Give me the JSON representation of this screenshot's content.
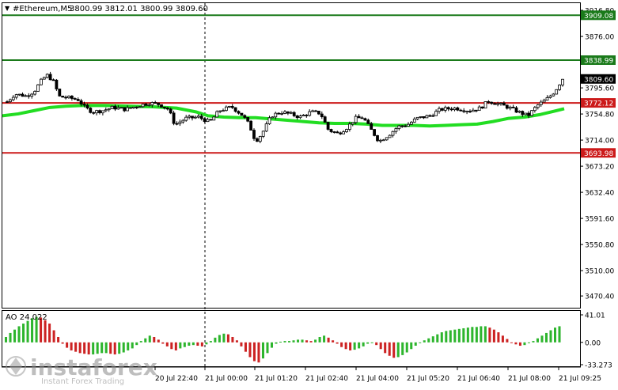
{
  "header": {
    "symbol": "#Ethereum,M5",
    "ohlc": "3800.99 3812.01 3800.99 3809.60"
  },
  "oscillator": {
    "label": "AO 24.022",
    "axis_ticks": [
      "41.01",
      "0.00",
      "-33.273"
    ]
  },
  "watermark": {
    "brand": "instaforex",
    "tagline": "Instant Forex Trading"
  },
  "colors": {
    "candle": "#000000",
    "ma": "#22dd22",
    "resistance": "#1a7a1a",
    "support": "#cc1a1a",
    "ao_up": "#2db52d",
    "ao_down": "#cc2222",
    "price_tag": "#000000"
  },
  "chart_data": {
    "type": "candlestick",
    "symbol": "#Ethereum",
    "timeframe": "M5",
    "ylim": [
      3452,
      3928
    ],
    "y_ticks": [
      "3916.80",
      "3876.00",
      "3795.60",
      "3754.80",
      "3714.00",
      "3673.20",
      "3632.40",
      "3591.60",
      "3550.80",
      "3510.00",
      "3470.40"
    ],
    "x_ticks": [
      "20 Jul 22:40",
      "21 Jul 00:00",
      "21 Jul 01:20",
      "21 Jul 02:40",
      "21 Jul 04:00",
      "21 Jul 05:20",
      "21 Jul 06:40",
      "21 Jul 08:00",
      "21 Jul 09:25"
    ],
    "levels": [
      {
        "value": 3909.08,
        "label": "3909.08",
        "role": "resistance"
      },
      {
        "value": 3838.99,
        "label": "3838.99",
        "role": "resistance"
      },
      {
        "value": 3772.12,
        "label": "3772.12",
        "role": "support"
      },
      {
        "value": 3693.98,
        "label": "3693.98",
        "role": "support"
      }
    ],
    "current_price": {
      "value": 3809.6,
      "label": "3809.60"
    },
    "ma_points": [
      [
        0,
        3752
      ],
      [
        20,
        3755
      ],
      [
        40,
        3760
      ],
      [
        60,
        3765
      ],
      [
        80,
        3767
      ],
      [
        100,
        3768
      ],
      [
        130,
        3768
      ],
      [
        160,
        3767
      ],
      [
        190,
        3766
      ],
      [
        220,
        3764
      ],
      [
        245,
        3758
      ],
      [
        260,
        3752
      ],
      [
        280,
        3750
      ],
      [
        300,
        3749
      ],
      [
        320,
        3749
      ],
      [
        340,
        3747
      ],
      [
        360,
        3745
      ],
      [
        380,
        3743
      ],
      [
        400,
        3741
      ],
      [
        420,
        3740
      ],
      [
        440,
        3740
      ],
      [
        460,
        3739
      ],
      [
        480,
        3737
      ],
      [
        500,
        3737
      ],
      [
        520,
        3737
      ],
      [
        540,
        3736
      ],
      [
        560,
        3737
      ],
      [
        580,
        3738
      ],
      [
        600,
        3739
      ],
      [
        620,
        3743
      ],
      [
        640,
        3748
      ],
      [
        660,
        3750
      ],
      [
        680,
        3754
      ],
      [
        700,
        3760
      ],
      [
        710,
        3763
      ]
    ],
    "price_path": [
      [
        6,
        3774
      ],
      [
        16,
        3786
      ],
      [
        30,
        3783
      ],
      [
        40,
        3790
      ],
      [
        48,
        3805
      ],
      [
        56,
        3816
      ],
      [
        64,
        3807
      ],
      [
        72,
        3782
      ],
      [
        84,
        3780
      ],
      [
        96,
        3777
      ],
      [
        104,
        3765
      ],
      [
        114,
        3758
      ],
      [
        126,
        3760
      ],
      [
        140,
        3765
      ],
      [
        156,
        3762
      ],
      [
        172,
        3768
      ],
      [
        186,
        3772
      ],
      [
        198,
        3770
      ],
      [
        210,
        3762
      ],
      [
        218,
        3738
      ],
      [
        232,
        3748
      ],
      [
        248,
        3750
      ],
      [
        262,
        3742
      ],
      [
        274,
        3760
      ],
      [
        290,
        3766
      ],
      [
        304,
        3752
      ],
      [
        312,
        3738
      ],
      [
        320,
        3712
      ],
      [
        328,
        3724
      ],
      [
        340,
        3752
      ],
      [
        352,
        3758
      ],
      [
        366,
        3754
      ],
      [
        376,
        3750
      ],
      [
        390,
        3758
      ],
      [
        402,
        3756
      ],
      [
        412,
        3730
      ],
      [
        424,
        3724
      ],
      [
        436,
        3734
      ],
      [
        446,
        3748
      ],
      [
        456,
        3749
      ],
      [
        466,
        3730
      ],
      [
        476,
        3712
      ],
      [
        488,
        3722
      ],
      [
        500,
        3735
      ],
      [
        512,
        3738
      ],
      [
        524,
        3748
      ],
      [
        540,
        3752
      ],
      [
        554,
        3762
      ],
      [
        572,
        3764
      ],
      [
        590,
        3760
      ],
      [
        604,
        3764
      ],
      [
        614,
        3775
      ],
      [
        628,
        3770
      ],
      [
        640,
        3765
      ],
      [
        652,
        3758
      ],
      [
        664,
        3752
      ],
      [
        676,
        3768
      ],
      [
        688,
        3778
      ],
      [
        698,
        3790
      ],
      [
        708,
        3810
      ]
    ],
    "ao_values": [
      8,
      14,
      19,
      24,
      28,
      32,
      36,
      38,
      37,
      33,
      28,
      18,
      8,
      -2,
      -8,
      -12,
      -14,
      -16,
      -17,
      -18,
      -18,
      -17,
      -16,
      -16,
      -17,
      -18,
      -17,
      -15,
      -12,
      -9,
      -4,
      2,
      6,
      10,
      8,
      4,
      -2,
      -6,
      -10,
      -12,
      -9,
      -7,
      -5,
      -4,
      -5,
      -6,
      -3,
      2,
      7,
      11,
      13,
      12,
      8,
      3,
      -6,
      -14,
      -22,
      -28,
      -30,
      -24,
      -16,
      -8,
      -2,
      1,
      2,
      2,
      3,
      4,
      4,
      3,
      2,
      4,
      8,
      10,
      7,
      3,
      -2,
      -7,
      -10,
      -12,
      -11,
      -9,
      -6,
      -2,
      -1,
      -4,
      -10,
      -16,
      -20,
      -23,
      -22,
      -19,
      -15,
      -10,
      -5,
      0,
      3,
      6,
      9,
      12,
      15,
      17,
      18,
      19,
      20,
      21,
      22,
      23,
      23,
      24,
      24,
      22,
      19,
      15,
      10,
      5,
      0,
      -3,
      -5,
      -4,
      -1,
      2,
      6,
      10,
      14,
      18,
      22,
      24
    ]
  }
}
